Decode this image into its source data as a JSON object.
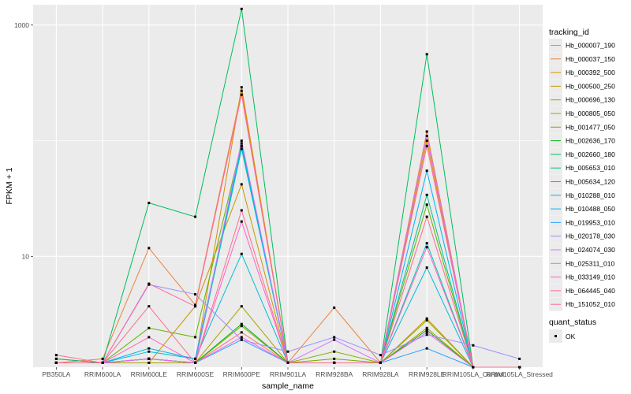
{
  "chart_data": {
    "type": "line",
    "xlabel": "sample_name",
    "ylabel": "FPKM + 1",
    "y_scale": "log10",
    "ylim": [
      1.1,
      1500
    ],
    "y_ticks": [
      10,
      1000
    ],
    "grid": true,
    "legend_position": "right",
    "categories": [
      "PB350LA",
      "RRIM600LA",
      "RRIM600LE",
      "RRIM600SE",
      "RRIM600PE",
      "RRIM901LA",
      "RRIM928BA",
      "RRIM928LA",
      "RRIM928LE",
      "RRIM105LA_Control",
      "RRIM105LA_Stressed"
    ],
    "legend": {
      "color_title": "tracking_id",
      "shape_title": "quant_status",
      "shape_label": "OK"
    },
    "series": [
      {
        "name": "Hb_000007_190",
        "color": "#F8766D",
        "values": [
          1.3,
          1.2,
          1.3,
          1.2,
          2.2,
          1.2,
          1.2,
          1.2,
          2.3,
          1.1,
          1.1
        ]
      },
      {
        "name": "Hb_000037_150",
        "color": "#EC8239",
        "values": [
          1.2,
          1.3,
          11.8,
          3.8,
          270,
          1.2,
          3.6,
          1.2,
          120,
          1.1,
          1.1
        ]
      },
      {
        "name": "Hb_000392_500",
        "color": "#DB8E00",
        "values": [
          1.2,
          1.2,
          1.3,
          1.2,
          290,
          1.2,
          1.2,
          1.2,
          100,
          1.1,
          1.1
        ]
      },
      {
        "name": "Hb_000500_250",
        "color": "#C79800",
        "values": [
          1.2,
          1.2,
          1.2,
          3.7,
          42,
          1.2,
          1.2,
          1.2,
          2.9,
          1.1,
          1.1
        ]
      },
      {
        "name": "Hb_000696_130",
        "color": "#AEA200",
        "values": [
          1.2,
          1.2,
          1.2,
          1.2,
          3.7,
          1.2,
          1.2,
          1.2,
          2.4,
          1.1,
          1.1
        ]
      },
      {
        "name": "Hb_000805_050",
        "color": "#8FAA00",
        "values": [
          1.2,
          1.2,
          1.3,
          1.2,
          2.5,
          1.2,
          1.5,
          1.2,
          2.8,
          1.1,
          1.1
        ]
      },
      {
        "name": "Hb_001477_050",
        "color": "#64B200",
        "values": [
          1.2,
          1.2,
          2.4,
          2.0,
          95,
          1.2,
          1.3,
          1.2,
          28,
          1.1,
          1.1
        ]
      },
      {
        "name": "Hb_002636_170",
        "color": "#00B81B",
        "values": [
          1.2,
          1.2,
          1.3,
          1.2,
          2.6,
          1.2,
          1.2,
          1.2,
          2.3,
          1.1,
          1.1
        ]
      },
      {
        "name": "Hb_002660_180",
        "color": "#00BD5C",
        "values": [
          1.3,
          1.2,
          29,
          22,
          1380,
          1.2,
          1.2,
          1.2,
          560,
          1.1,
          1.1
        ]
      },
      {
        "name": "Hb_005653_010",
        "color": "#00C08E",
        "values": [
          1.2,
          1.2,
          1.3,
          1.2,
          90,
          1.2,
          1.2,
          1.2,
          34,
          1.1,
          1.1
        ]
      },
      {
        "name": "Hb_005634_120",
        "color": "#00C1B2",
        "values": [
          1.2,
          1.2,
          1.3,
          1.2,
          85,
          1.2,
          1.2,
          1.2,
          13,
          1.1,
          1.1
        ]
      },
      {
        "name": "Hb_010288_010",
        "color": "#00BCD6",
        "values": [
          1.2,
          1.2,
          1.5,
          1.3,
          10.5,
          1.2,
          1.2,
          1.2,
          8.0,
          1.1,
          1.1
        ]
      },
      {
        "name": "Hb_010488_050",
        "color": "#00B3F2",
        "values": [
          1.2,
          1.2,
          1.6,
          1.3,
          90,
          1.2,
          1.2,
          1.2,
          55,
          1.1,
          1.1
        ]
      },
      {
        "name": "Hb_019953_010",
        "color": "#29A3FF",
        "values": [
          1.2,
          1.2,
          1.3,
          1.2,
          1.9,
          1.2,
          1.2,
          1.2,
          1.6,
          1.1,
          1.1
        ]
      },
      {
        "name": "Hb_020178_030",
        "color": "#9C8DFF",
        "values": [
          1.2,
          1.2,
          5.7,
          4.7,
          1.9,
          1.5,
          2.0,
          1.4,
          2.1,
          1.7,
          1.3
        ]
      },
      {
        "name": "Hb_024074_030",
        "color": "#D277FF",
        "values": [
          1.2,
          1.2,
          1.3,
          1.2,
          100,
          1.2,
          1.9,
          1.2,
          110,
          1.1,
          1.1
        ]
      },
      {
        "name": "Hb_025311_010",
        "color": "#F166E8",
        "values": [
          1.2,
          1.2,
          1.3,
          1.2,
          2.0,
          1.2,
          1.2,
          1.2,
          2.2,
          1.1,
          1.1
        ]
      },
      {
        "name": "Hb_033149_010",
        "color": "#FF61C7",
        "values": [
          1.2,
          1.2,
          2.0,
          1.2,
          20,
          1.2,
          1.2,
          1.2,
          12,
          1.1,
          1.1
        ]
      },
      {
        "name": "Hb_064445_040",
        "color": "#FF689E",
        "values": [
          1.2,
          1.2,
          5.8,
          3.7,
          250,
          1.2,
          1.2,
          1.2,
          90,
          1.1,
          1.1
        ]
      },
      {
        "name": "Hb_151052_010",
        "color": "#FF6C91",
        "values": [
          1.4,
          1.2,
          3.7,
          1.2,
          25,
          1.2,
          1.2,
          1.2,
          22,
          1.1,
          1.1
        ]
      }
    ]
  }
}
